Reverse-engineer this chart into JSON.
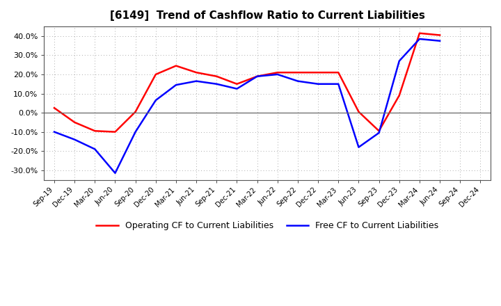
{
  "title": "[6149]  Trend of Cashflow Ratio to Current Liabilities",
  "x_labels": [
    "Sep-19",
    "Dec-19",
    "Mar-20",
    "Jun-20",
    "Sep-20",
    "Dec-20",
    "Mar-21",
    "Jun-21",
    "Sep-21",
    "Dec-21",
    "Mar-22",
    "Jun-22",
    "Sep-22",
    "Dec-22",
    "Mar-23",
    "Jun-23",
    "Sep-23",
    "Dec-23",
    "Mar-24",
    "Jun-24",
    "Sep-24",
    "Dec-24"
  ],
  "operating_cf": [
    2.5,
    -5.0,
    -9.5,
    -10.0,
    0.5,
    20.0,
    24.5,
    21.0,
    19.0,
    15.0,
    19.0,
    21.0,
    21.0,
    21.0,
    21.0,
    0.5,
    -9.5,
    9.0,
    41.5,
    40.5,
    null,
    null
  ],
  "free_cf": [
    -10.0,
    -14.0,
    -19.0,
    -31.5,
    -10.0,
    6.5,
    14.5,
    16.5,
    15.0,
    12.5,
    19.0,
    20.0,
    16.5,
    15.0,
    15.0,
    -18.0,
    -10.5,
    27.0,
    38.5,
    37.5,
    null,
    null
  ],
  "operating_color": "#ff0000",
  "free_color": "#0000ff",
  "ylim": [
    -35,
    45
  ],
  "yticks": [
    -30,
    -20,
    -10,
    0,
    10,
    20,
    30,
    40
  ],
  "background_color": "#ffffff",
  "plot_bg_color": "#ffffff",
  "grid_color": "#aaaaaa",
  "legend_labels": [
    "Operating CF to Current Liabilities",
    "Free CF to Current Liabilities"
  ]
}
